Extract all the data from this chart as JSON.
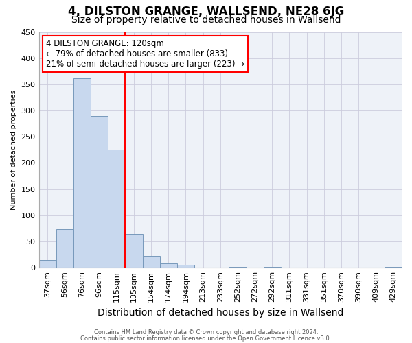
{
  "title": "4, DILSTON GRANGE, WALLSEND, NE28 6JG",
  "subtitle": "Size of property relative to detached houses in Wallsend",
  "xlabel": "Distribution of detached houses by size in Wallsend",
  "ylabel": "Number of detached properties",
  "categories": [
    "37sqm",
    "56sqm",
    "76sqm",
    "96sqm",
    "115sqm",
    "135sqm",
    "154sqm",
    "174sqm",
    "194sqm",
    "213sqm",
    "233sqm",
    "252sqm",
    "272sqm",
    "292sqm",
    "311sqm",
    "331sqm",
    "351sqm",
    "370sqm",
    "390sqm",
    "409sqm",
    "429sqm"
  ],
  "values": [
    15,
    73,
    362,
    290,
    225,
    65,
    22,
    8,
    6,
    0,
    0,
    2,
    0,
    2,
    0,
    0,
    0,
    0,
    0,
    0,
    2
  ],
  "bar_color": "#c8d8ee",
  "bar_edge_color": "#7799bb",
  "red_line_x": 4.5,
  "ylim": [
    0,
    450
  ],
  "yticks": [
    0,
    50,
    100,
    150,
    200,
    250,
    300,
    350,
    400,
    450
  ],
  "annotation_line1": "4 DILSTON GRANGE: 120sqm",
  "annotation_line2": "← 79% of detached houses are smaller (833)",
  "annotation_line3": "21% of semi-detached houses are larger (223) →",
  "footer1": "Contains HM Land Registry data © Crown copyright and database right 2024.",
  "footer2": "Contains public sector information licensed under the Open Government Licence v3.0.",
  "bg_color": "#eef2f8",
  "grid_color": "#ccccdd",
  "title_fontsize": 12,
  "subtitle_fontsize": 10,
  "xlabel_fontsize": 10,
  "ylabel_fontsize": 8,
  "tick_fontsize": 8,
  "annot_fontsize": 8.5,
  "footer_fontsize": 6
}
